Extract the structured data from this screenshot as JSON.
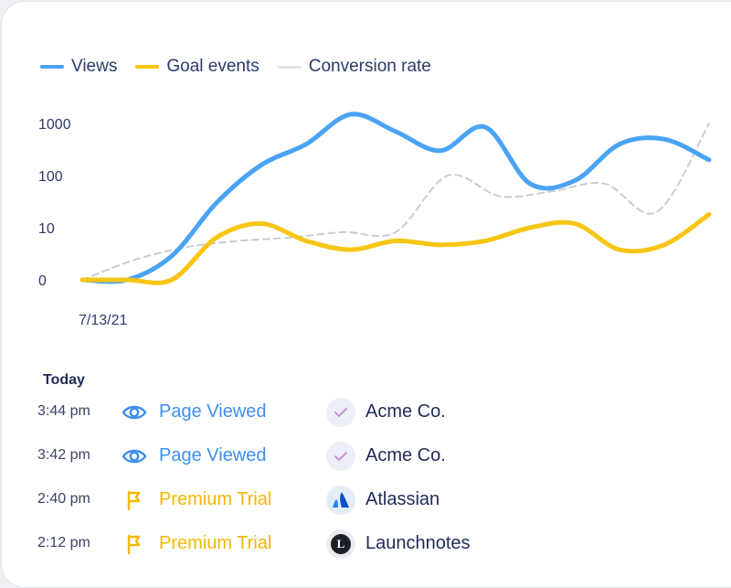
{
  "legend": [
    {
      "label": "Views",
      "color": "#4aa3f5",
      "style": "solid"
    },
    {
      "label": "Goal events",
      "color": "#f7c514",
      "style": "solid"
    },
    {
      "label": "Conversion rate",
      "color": "#d5d7dc",
      "style": "dashed"
    }
  ],
  "chart_data": {
    "type": "line",
    "y_scale": "log",
    "y_ticks": [
      "1000",
      "100",
      "10",
      "0"
    ],
    "x_ticks": [
      "7/13/21"
    ],
    "grid": false,
    "legend_position": "top-left",
    "series": [
      {
        "name": "Views",
        "color": "#4aa3f5",
        "dashed": false,
        "values": [
          0,
          0,
          2,
          30,
          160,
          400,
          1500,
          700,
          300,
          850,
          70,
          80,
          400,
          500,
          200
        ]
      },
      {
        "name": "Goal events",
        "color": "#f7c514",
        "dashed": false,
        "values": [
          0,
          0,
          0,
          6,
          12,
          5,
          3,
          5,
          4,
          5,
          10,
          12,
          3,
          4,
          18
        ]
      },
      {
        "name": "Conversion rate",
        "color": "#c9ccd2",
        "dashed": true,
        "values": [
          0,
          1.5,
          3.5,
          5,
          6,
          8,
          8,
          100,
          40,
          50,
          70,
          20,
          1000
        ]
      }
    ]
  },
  "feed": {
    "title": "Today",
    "rows": [
      {
        "time": "3:44 pm",
        "event": "Page Viewed",
        "event_type": "eye-icon",
        "event_color": "#3d8ff0",
        "company": "Acme Co.",
        "company_logo": "check-logo-icon"
      },
      {
        "time": "3:42 pm",
        "event": "Page Viewed",
        "event_type": "eye-icon",
        "event_color": "#3d8ff0",
        "company": "Acme Co.",
        "company_logo": "check-logo-icon"
      },
      {
        "time": "2:40 pm",
        "event": "Premium Trial",
        "event_type": "flag-icon",
        "event_color": "#f2b705",
        "company": "Atlassian",
        "company_logo": "atlassian-logo-icon"
      },
      {
        "time": "2:12 pm",
        "event": "Premium Trial",
        "event_type": "flag-icon",
        "event_color": "#f2b705",
        "company": "Launchnotes",
        "company_logo": "launchnotes-logo-icon"
      }
    ]
  }
}
